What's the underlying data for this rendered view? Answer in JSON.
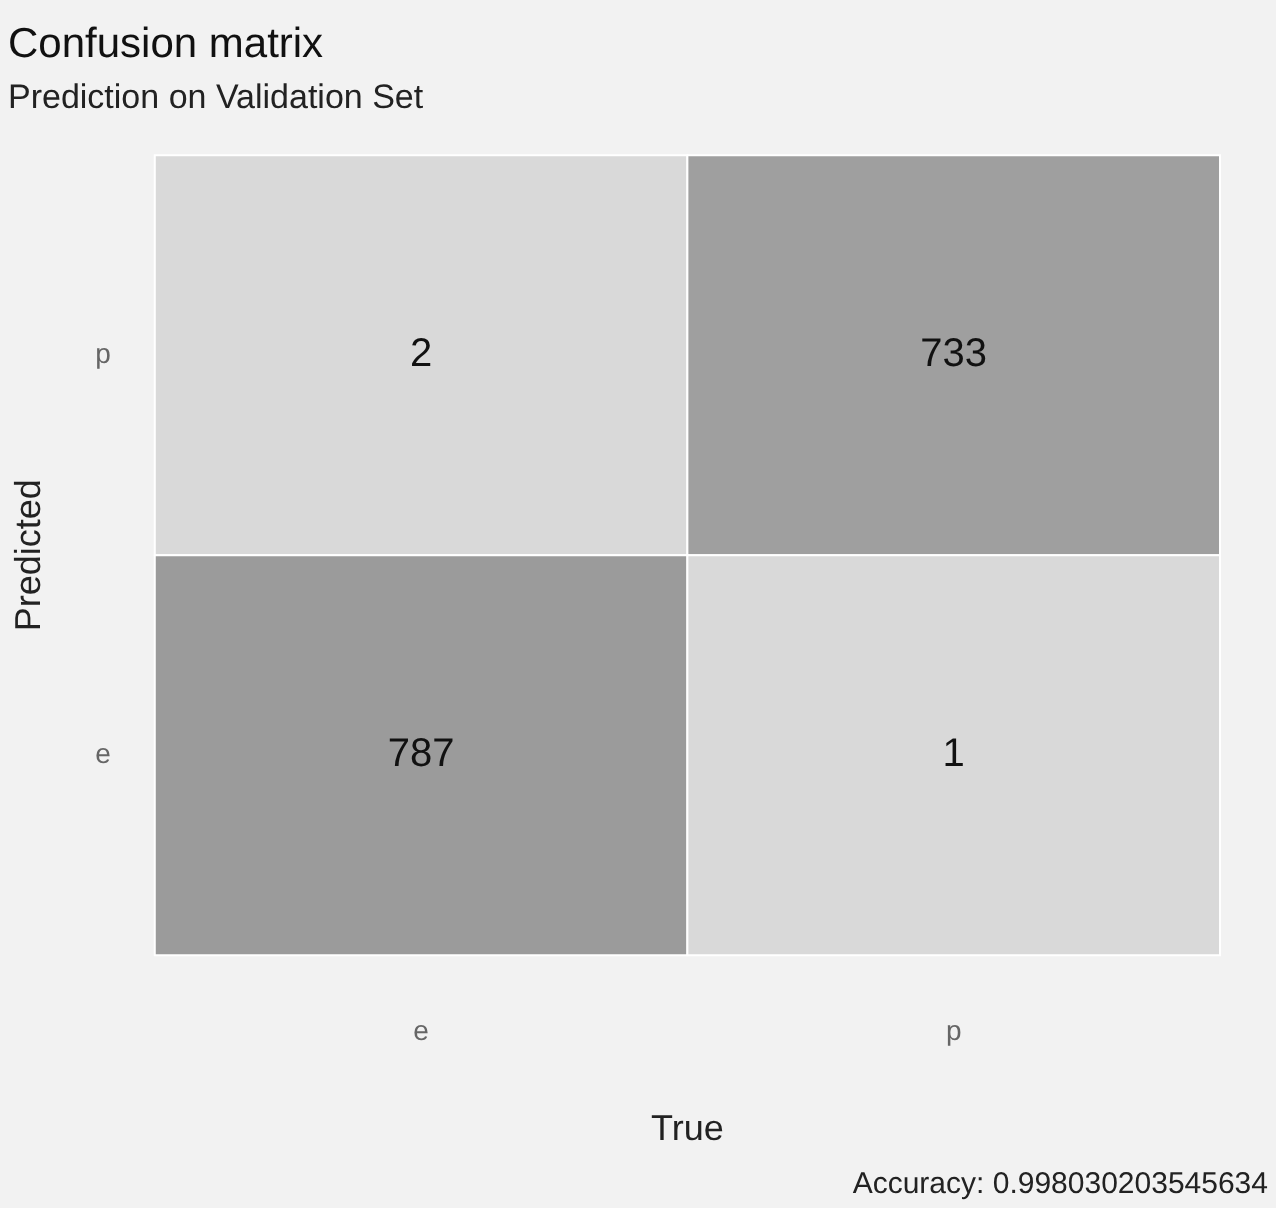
{
  "chart_data": {
    "type": "heatmap",
    "title": "Confusion matrix",
    "subtitle": "Prediction on Validation Set",
    "xlabel": "True",
    "ylabel": "Predicted",
    "categories": [
      "e",
      "p"
    ],
    "y_categories": [
      "p",
      "e"
    ],
    "cells": [
      [
        2,
        733
      ],
      [
        787,
        1
      ]
    ],
    "data_labels": true,
    "annotations": [
      "Accuracy: 0.998030203545634"
    ]
  }
}
